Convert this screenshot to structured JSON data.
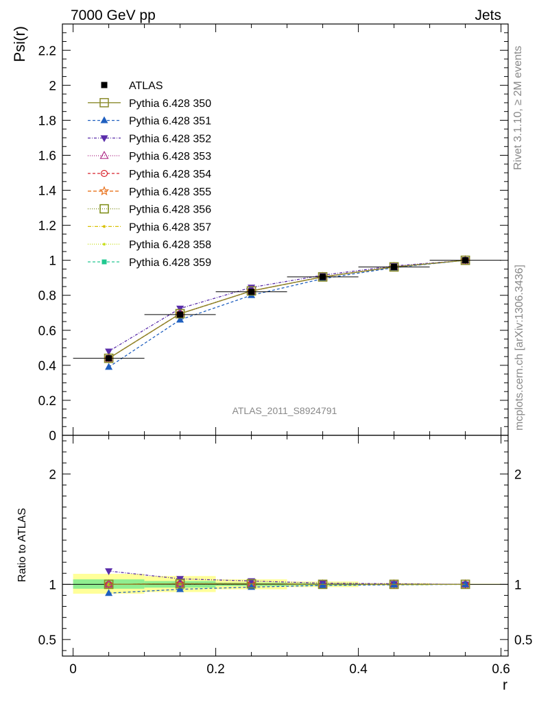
{
  "header": {
    "left": "7000 GeV pp",
    "right": "Jets"
  },
  "side_labels": {
    "top": "Rivet 3.1.10, ≥ 2M events",
    "bottom": "mcplots.cern.ch [arXiv:1306.3436]"
  },
  "analysis_label": "ATLAS_2011_S8924791",
  "chart_data": [
    {
      "type": "line",
      "panel": "main",
      "ylabel": "Psi(r)",
      "xlabel": "",
      "xlim": [
        -0.015,
        0.61
      ],
      "ylim": [
        0,
        2.35
      ],
      "y_ticks": [
        {
          "v": 0,
          "label": "0"
        },
        {
          "v": 0.2,
          "label": "0.2"
        },
        {
          "v": 0.4,
          "label": "0.4"
        },
        {
          "v": 0.6,
          "label": "0.6"
        },
        {
          "v": 0.8,
          "label": "0.8"
        },
        {
          "v": 1.0,
          "label": "1"
        },
        {
          "v": 1.2,
          "label": "1.2"
        },
        {
          "v": 1.4,
          "label": "1.4"
        },
        {
          "v": 1.6,
          "label": "1.6"
        },
        {
          "v": 1.8,
          "label": "1.8"
        },
        {
          "v": 2.0,
          "label": "2"
        },
        {
          "v": 2.2,
          "label": "2.2"
        }
      ],
      "x": [
        0.05,
        0.15,
        0.25,
        0.35,
        0.45,
        0.55
      ],
      "data_series": {
        "name": "ATLAS",
        "values": [
          0.44,
          0.69,
          0.82,
          0.905,
          0.962,
          1.0
        ],
        "x_err": 0.05
      },
      "series": [
        {
          "name": "Pythia 6.428 350",
          "color": "#8a8a2a",
          "dash": "",
          "marker": "square-open",
          "values": [
            0.44,
            0.695,
            0.825,
            0.905,
            0.962,
            1.0
          ]
        },
        {
          "name": "Pythia 6.428 351",
          "color": "#1f5fbf",
          "dash": "4,3",
          "marker": "triangle-up-filled",
          "values": [
            0.39,
            0.66,
            0.8,
            0.895,
            0.958,
            1.0
          ]
        },
        {
          "name": "Pythia 6.428 352",
          "color": "#5a2daa",
          "dash": "4,2,1,2",
          "marker": "triangle-down-filled",
          "values": [
            0.48,
            0.725,
            0.845,
            0.915,
            0.968,
            1.0
          ]
        },
        {
          "name": "Pythia 6.428 353",
          "color": "#b0308a",
          "dash": "1,2",
          "marker": "triangle-up-open",
          "values": [
            0.44,
            0.695,
            0.825,
            0.905,
            0.962,
            1.0
          ]
        },
        {
          "name": "Pythia 6.428 354",
          "color": "#d8202a",
          "dash": "4,3",
          "marker": "circle-open",
          "values": [
            0.44,
            0.695,
            0.825,
            0.905,
            0.962,
            1.0
          ]
        },
        {
          "name": "Pythia 6.428 355",
          "color": "#e8701a",
          "dash": "5,3",
          "marker": "star-open",
          "values": [
            0.44,
            0.695,
            0.825,
            0.905,
            0.962,
            1.0
          ]
        },
        {
          "name": "Pythia 6.428 356",
          "color": "#7a8a10",
          "dash": "1,2",
          "marker": "square-open",
          "values": [
            0.44,
            0.695,
            0.825,
            0.905,
            0.962,
            1.0
          ]
        },
        {
          "name": "Pythia 6.428 357",
          "color": "#d8c000",
          "dash": "5,2,1,2",
          "marker": "dot",
          "values": [
            0.44,
            0.695,
            0.825,
            0.905,
            0.962,
            1.0
          ]
        },
        {
          "name": "Pythia 6.428 358",
          "color": "#c8e020",
          "dash": "1,2",
          "marker": "dot",
          "values": [
            0.44,
            0.695,
            0.825,
            0.905,
            0.962,
            1.0
          ]
        },
        {
          "name": "Pythia 6.428 359",
          "color": "#20c890",
          "dash": "4,3",
          "marker": "square-filled",
          "values": [
            0.44,
            0.695,
            0.825,
            0.905,
            0.962,
            1.0
          ]
        }
      ],
      "legend_position": "top-left"
    },
    {
      "type": "line",
      "panel": "ratio",
      "ylabel": "Ratio to ATLAS",
      "xlabel": "r",
      "xlim": [
        -0.015,
        0.61
      ],
      "ylim": [
        0.35,
        2.35
      ],
      "y_ticks": [
        {
          "v": 0.5,
          "label": "0.5"
        },
        {
          "v": 1.0,
          "label": "1"
        },
        {
          "v": 2.0,
          "label": "2"
        }
      ],
      "x_ticks": [
        {
          "v": 0,
          "label": "0"
        },
        {
          "v": 0.2,
          "label": "0.2"
        },
        {
          "v": 0.4,
          "label": "0.4"
        },
        {
          "v": 0.6,
          "label": "0.6"
        }
      ],
      "x": [
        0.05,
        0.15,
        0.25,
        0.35,
        0.45,
        0.55
      ],
      "bands": {
        "x_err": 0.05,
        "stat": [
          [
            0.96,
            1.045
          ],
          [
            0.97,
            1.03
          ],
          [
            0.985,
            1.015
          ],
          [
            0.99,
            1.01
          ],
          [
            0.995,
            1.005
          ],
          [
            0.998,
            1.002
          ]
        ],
        "total": [
          [
            0.915,
            1.095
          ],
          [
            0.93,
            1.075
          ],
          [
            0.955,
            1.045
          ],
          [
            0.975,
            1.025
          ],
          [
            0.99,
            1.01
          ],
          [
            0.995,
            1.005
          ]
        ],
        "stat_color": "#90ee90",
        "total_color": "#ffff99"
      },
      "series": [
        {
          "name": "Pythia 6.428 350",
          "values": [
            1.0,
            1.005,
            1.005,
            1.0,
            1.0,
            1.0
          ]
        },
        {
          "name": "Pythia 6.428 351",
          "values": [
            0.92,
            0.955,
            0.975,
            0.99,
            0.996,
            1.0
          ]
        },
        {
          "name": "Pythia 6.428 352",
          "values": [
            1.12,
            1.05,
            1.03,
            1.01,
            1.005,
            1.0
          ]
        },
        {
          "name": "Pythia 6.428 353",
          "values": [
            1.0,
            1.005,
            1.005,
            1.0,
            1.0,
            1.0
          ]
        },
        {
          "name": "Pythia 6.428 354",
          "values": [
            1.0,
            1.005,
            1.005,
            1.0,
            1.0,
            1.0
          ]
        },
        {
          "name": "Pythia 6.428 355",
          "values": [
            1.0,
            1.005,
            1.005,
            1.0,
            1.0,
            1.0
          ]
        },
        {
          "name": "Pythia 6.428 356",
          "values": [
            1.0,
            1.005,
            1.005,
            1.0,
            1.0,
            1.0
          ]
        },
        {
          "name": "Pythia 6.428 357",
          "values": [
            1.0,
            1.005,
            1.005,
            1.0,
            1.0,
            1.0
          ]
        },
        {
          "name": "Pythia 6.428 358",
          "values": [
            1.0,
            1.005,
            1.005,
            1.0,
            1.0,
            1.0
          ]
        },
        {
          "name": "Pythia 6.428 359",
          "values": [
            1.0,
            1.005,
            1.005,
            1.0,
            1.0,
            1.0
          ]
        }
      ]
    }
  ]
}
